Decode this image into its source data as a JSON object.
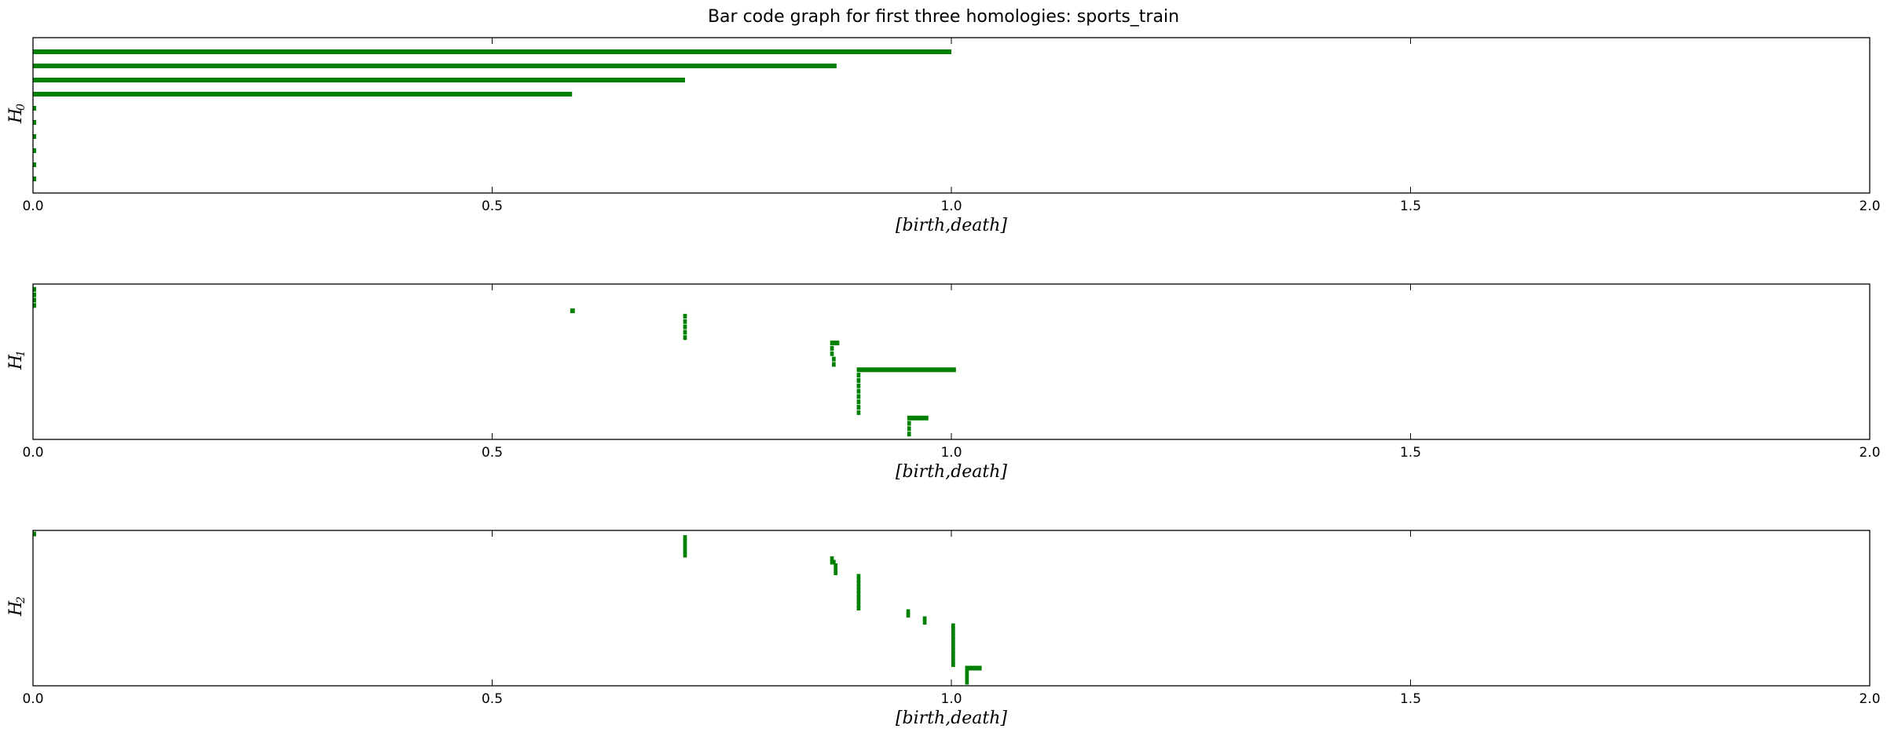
{
  "chart_data": {
    "title": "Bar code graph for first three homologies: sports_train",
    "type": "barcode",
    "xlim": [
      0,
      2.0
    ],
    "xticks": [
      "0.0",
      "0.5",
      "1.0",
      "1.5",
      "2.0"
    ],
    "grid": false,
    "bar_color": "#008000",
    "panels": [
      {
        "ylabel": "H",
        "ylabel_sub": "0",
        "xlabel": "[birth,death]",
        "intervals": [
          [
            0.0,
            1.0
          ],
          [
            0.0,
            0.875
          ],
          [
            0.0,
            0.71
          ],
          [
            0.0,
            0.587
          ],
          [
            0.0,
            0.002
          ],
          [
            0.0,
            0.002
          ],
          [
            0.0,
            0.002
          ],
          [
            0.0,
            0.002
          ],
          [
            0.0,
            0.002
          ],
          [
            0.0,
            0.002
          ]
        ]
      },
      {
        "ylabel": "H",
        "ylabel_sub": "1",
        "xlabel": "[birth,death]",
        "intervals": [
          [
            0.0,
            0.002
          ],
          [
            0.0,
            0.002
          ],
          [
            0.0,
            0.002
          ],
          [
            0.0,
            0.002
          ],
          [
            0.585,
            0.59
          ],
          [
            0.708,
            0.712
          ],
          [
            0.708,
            0.712
          ],
          [
            0.708,
            0.712
          ],
          [
            0.708,
            0.712
          ],
          [
            0.708,
            0.712
          ],
          [
            0.868,
            0.878
          ],
          [
            0.868,
            0.872
          ],
          [
            0.868,
            0.872
          ],
          [
            0.87,
            0.874
          ],
          [
            0.87,
            0.874
          ],
          [
            0.897,
            1.005
          ],
          [
            0.897,
            0.901
          ],
          [
            0.897,
            0.901
          ],
          [
            0.897,
            0.901
          ],
          [
            0.897,
            0.901
          ],
          [
            0.897,
            0.901
          ],
          [
            0.897,
            0.901
          ],
          [
            0.897,
            0.901
          ],
          [
            0.897,
            0.901
          ],
          [
            0.952,
            0.975
          ],
          [
            0.952,
            0.956
          ],
          [
            0.952,
            0.956
          ],
          [
            0.952,
            0.956
          ]
        ]
      },
      {
        "ylabel": "H",
        "ylabel_sub": "2",
        "xlabel": "[birth,death]",
        "intervals": [
          [
            0.0,
            0.003
          ],
          [
            0.708,
            0.712
          ],
          [
            0.708,
            0.712
          ],
          [
            0.708,
            0.712
          ],
          [
            0.708,
            0.712
          ],
          [
            0.708,
            0.712
          ],
          [
            0.708,
            0.712
          ],
          [
            0.868,
            0.872
          ],
          [
            0.868,
            0.874
          ],
          [
            0.872,
            0.876
          ],
          [
            0.872,
            0.876
          ],
          [
            0.872,
            0.876
          ],
          [
            0.897,
            0.901
          ],
          [
            0.897,
            0.901
          ],
          [
            0.897,
            0.901
          ],
          [
            0.897,
            0.901
          ],
          [
            0.897,
            0.901
          ],
          [
            0.897,
            0.901
          ],
          [
            0.897,
            0.901
          ],
          [
            0.897,
            0.901
          ],
          [
            0.897,
            0.901
          ],
          [
            0.897,
            0.901
          ],
          [
            0.951,
            0.955
          ],
          [
            0.951,
            0.955
          ],
          [
            0.969,
            0.973
          ],
          [
            0.969,
            0.973
          ],
          [
            1.0,
            1.004
          ],
          [
            1.0,
            1.004
          ],
          [
            1.0,
            1.004
          ],
          [
            1.0,
            1.004
          ],
          [
            1.0,
            1.004
          ],
          [
            1.0,
            1.004
          ],
          [
            1.0,
            1.004
          ],
          [
            1.0,
            1.004
          ],
          [
            1.0,
            1.004
          ],
          [
            1.0,
            1.004
          ],
          [
            1.0,
            1.004
          ],
          [
            1.0,
            1.004
          ],
          [
            1.015,
            1.033
          ],
          [
            1.015,
            1.019
          ],
          [
            1.015,
            1.019
          ],
          [
            1.015,
            1.019
          ],
          [
            1.015,
            1.019
          ]
        ]
      }
    ]
  }
}
